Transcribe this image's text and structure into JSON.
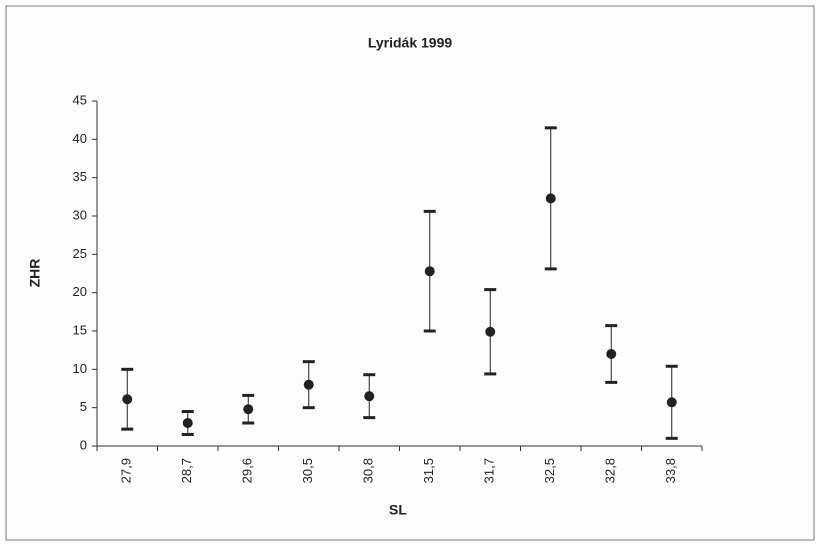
{
  "chart_data": {
    "type": "errorbar",
    "title": "Lyridák 1999",
    "xlabel": "SL",
    "ylabel": "ZHR",
    "categories": [
      "27,9",
      "28,7",
      "29,6",
      "30,5",
      "30,8",
      "31,5",
      "31,7",
      "32,5",
      "32,8",
      "33,8"
    ],
    "values": [
      6.1,
      3.0,
      4.8,
      8.0,
      6.5,
      22.8,
      14.9,
      32.3,
      12.0,
      5.7
    ],
    "errors": [
      3.9,
      1.5,
      1.8,
      3.0,
      2.8,
      7.8,
      5.5,
      9.2,
      3.7,
      4.7
    ],
    "color": "#222222",
    "ylim": [
      0,
      45
    ],
    "yticks": [
      0,
      5,
      10,
      15,
      20,
      25,
      30,
      35,
      40,
      45
    ],
    "grid": false
  }
}
